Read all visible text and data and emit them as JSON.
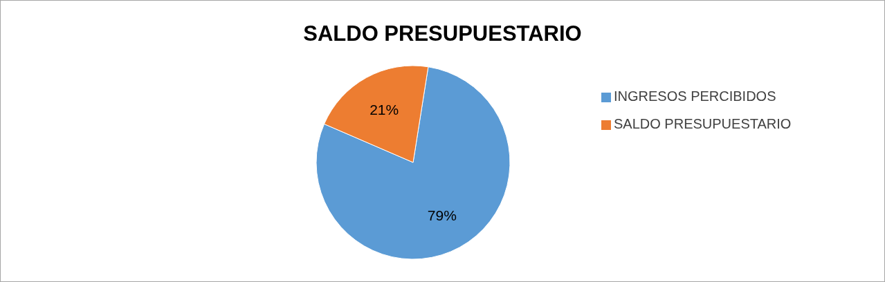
{
  "chart_data": {
    "type": "pie",
    "title": "SALDO PRESUPUESTARIO",
    "categories": [
      "INGRESOS PERCIBIDOS",
      "SALDO PRESUPUESTARIO"
    ],
    "values": [
      79,
      21
    ],
    "colors": [
      "#5b9bd5",
      "#ed7d31"
    ],
    "value_labels": [
      "79%",
      "21%"
    ],
    "legend": "right"
  }
}
